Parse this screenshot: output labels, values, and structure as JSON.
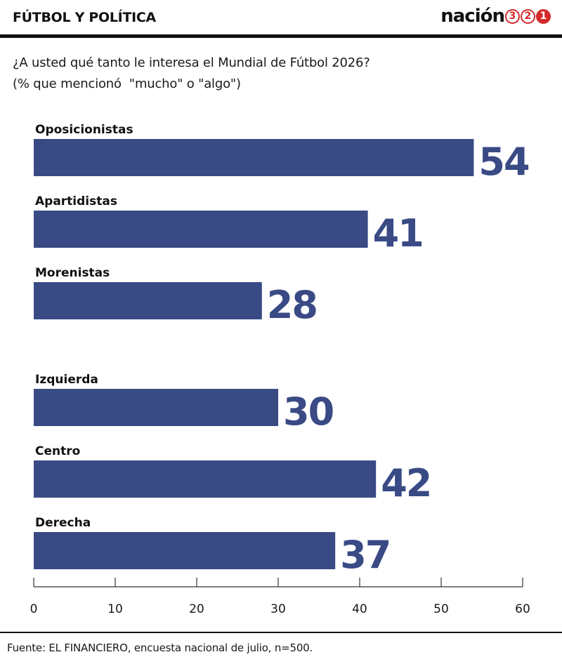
{
  "header": {
    "section_title": "FÚTBOL Y POLÍTICA",
    "logo": {
      "word": "nación",
      "digits": [
        "3",
        "2",
        "1"
      ]
    }
  },
  "chart_data": {
    "type": "bar",
    "orientation": "horizontal",
    "title": "¿A usted qué tanto le interesa el Mundial de Fútbol 2026?",
    "subtitle": "(% que mencionó  \"mucho\" o \"algo\")",
    "categories": [
      "Oposicionistas",
      "Apartidistas",
      "Morenistas",
      "Izquierda",
      "Centro",
      "Derecha"
    ],
    "values": [
      54,
      41,
      28,
      30,
      42,
      37
    ],
    "groups": [
      [
        "Oposicionistas",
        "Apartidistas",
        "Morenistas"
      ],
      [
        "Izquierda",
        "Centro",
        "Derecha"
      ]
    ],
    "xlim": [
      0,
      60
    ],
    "xticks": [
      0,
      10,
      20,
      30,
      40,
      50,
      60
    ],
    "bar_color": "#394a85",
    "label_color": "#394a85",
    "grid": false
  },
  "footer": {
    "source": "Fuente: EL FINANCIERO, encuesta nacional de julio, n=500."
  }
}
